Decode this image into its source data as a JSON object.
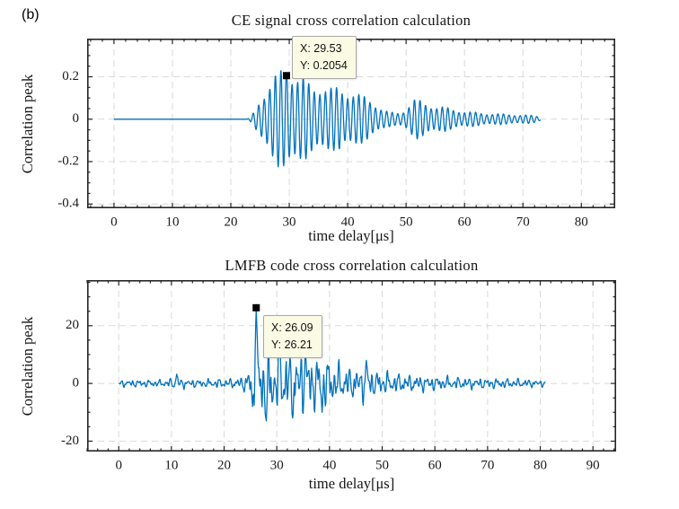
{
  "figure_label": "(b)",
  "style": {
    "line_color": "#0072BD",
    "grid_color": "#d9d9d9",
    "axis_color": "#252525",
    "tick_color": "#252525",
    "marker_color": "#000000",
    "datatip_bg": "#fbfbe5",
    "datatip_border": "#a8a8a8",
    "background": "#ffffff"
  },
  "chart_data": [
    {
      "type": "line",
      "title": "CE signal cross correlation calculation",
      "xlabel": "time delay[μs]",
      "ylabel": "Correlation peak",
      "xlim": [
        -4.6,
        85.8
      ],
      "ylim": [
        -0.42,
        0.38
      ],
      "xticks": [
        0,
        10,
        20,
        30,
        40,
        50,
        60,
        70,
        80
      ],
      "yticks": [
        -0.4,
        -0.2,
        0,
        0.2
      ],
      "x_minor_step": 2,
      "y_minor_step": 0.05,
      "x_major_step": 10,
      "y_major_step": 0.2,
      "grid": "dashed",
      "legend": "none",
      "peak": {
        "x": 29.53,
        "y": 0.2054
      },
      "datatip": {
        "line1": "X: 29.53",
        "line2": "Y: 0.2054"
      },
      "signal": {
        "kind": "am_burst",
        "t_start": 0,
        "t_end": 73,
        "dt": 0.05,
        "carrier_freq": 1.05,
        "carrier_t0": 23.0,
        "carrier_phase": 2.48,
        "am_mod": {
          "freq": 0.21,
          "depth": 0.18,
          "phase": 2.0
        },
        "envelope": [
          [
            0,
            0
          ],
          [
            22.8,
            0
          ],
          [
            23.3,
            0.008
          ],
          [
            24,
            0.03
          ],
          [
            24.8,
            0.07
          ],
          [
            25.6,
            0.11
          ],
          [
            26.5,
            0.15
          ],
          [
            27.5,
            0.18
          ],
          [
            28.5,
            0.198
          ],
          [
            29.53,
            0.2054
          ],
          [
            30.5,
            0.2
          ],
          [
            31.5,
            0.19
          ],
          [
            32.5,
            0.17
          ],
          [
            33.5,
            0.14
          ],
          [
            34.5,
            0.13
          ],
          [
            35.5,
            0.145
          ],
          [
            36.5,
            0.14
          ],
          [
            37.5,
            0.125
          ],
          [
            38.5,
            0.13
          ],
          [
            39.5,
            0.115
          ],
          [
            40.5,
            0.12
          ],
          [
            41.5,
            0.11
          ],
          [
            42.5,
            0.095
          ],
          [
            43.5,
            0.085
          ],
          [
            44.5,
            0.07
          ],
          [
            45.5,
            0.05
          ],
          [
            46.5,
            0.035
          ],
          [
            47.5,
            0.028
          ],
          [
            48.5,
            0.026
          ],
          [
            49.5,
            0.035
          ],
          [
            50.5,
            0.06
          ],
          [
            51.5,
            0.082
          ],
          [
            52.5,
            0.075
          ],
          [
            53.5,
            0.065
          ],
          [
            55,
            0.055
          ],
          [
            56.5,
            0.05
          ],
          [
            58,
            0.042
          ],
          [
            59.5,
            0.035
          ],
          [
            61,
            0.03
          ],
          [
            63,
            0.026
          ],
          [
            65,
            0.023
          ],
          [
            67,
            0.021
          ],
          [
            69,
            0.019
          ],
          [
            71,
            0.017
          ],
          [
            72.5,
            0.012
          ],
          [
            73,
            0.006
          ]
        ],
        "pins": [
          {
            "t": 29.53,
            "y": 0.2054,
            "w": 0.25
          }
        ]
      }
    },
    {
      "type": "line",
      "title": "LMFB code cross correlation calculation",
      "xlabel": "time delay[μs]",
      "ylabel": "Correlation peak",
      "xlim": [
        -6.0,
        94.4
      ],
      "ylim": [
        -23.6,
        35.8
      ],
      "xticks": [
        0,
        10,
        20,
        30,
        40,
        50,
        60,
        70,
        80,
        90
      ],
      "yticks": [
        -20,
        0,
        20
      ],
      "x_minor_step": 2,
      "y_minor_step": 5,
      "x_major_step": 10,
      "y_major_step": 20,
      "grid": "dashed",
      "legend": "none",
      "peak": {
        "x": 26.09,
        "y": 26.21
      },
      "datatip": {
        "line1": "X: 26.09",
        "line2": "Y: 26.21"
      },
      "signal": {
        "kind": "noise",
        "t_start": 0,
        "t_end": 81,
        "dt": 0.1,
        "components": {
          "freqs": [
            0.53,
            0.97,
            1.41,
            2.09,
            2.71
          ],
          "weights": [
            0.5,
            0.55,
            0.45,
            0.3,
            0.18
          ],
          "phases": [
            1.1,
            4.2,
            2.6,
            5.3,
            0.8
          ],
          "norm": 1.5
        },
        "envelope": [
          [
            0,
            1.3
          ],
          [
            4,
            1.4
          ],
          [
            8,
            1.3
          ],
          [
            11,
            2.2
          ],
          [
            13,
            1.6
          ],
          [
            16,
            1.5
          ],
          [
            19,
            1.8
          ],
          [
            22,
            1.8
          ],
          [
            23.5,
            2.5
          ],
          [
            24.5,
            5
          ],
          [
            25.5,
            8
          ],
          [
            26.5,
            12
          ],
          [
            28,
            13
          ],
          [
            30,
            13
          ],
          [
            32,
            12
          ],
          [
            34,
            12
          ],
          [
            36,
            11
          ],
          [
            38,
            10
          ],
          [
            40,
            9
          ],
          [
            41,
            8
          ],
          [
            42,
            7
          ],
          [
            43,
            6.5
          ],
          [
            44,
            6
          ],
          [
            46,
            6
          ],
          [
            47,
            7
          ],
          [
            48,
            5
          ],
          [
            50,
            4.5
          ],
          [
            52,
            4
          ],
          [
            54,
            3.5
          ],
          [
            56,
            3
          ],
          [
            58,
            3
          ],
          [
            60,
            2.6
          ],
          [
            63,
            2.4
          ],
          [
            66,
            2.2
          ],
          [
            70,
            2
          ],
          [
            74,
            1.8
          ],
          [
            78,
            1.5
          ],
          [
            81,
            1.2
          ]
        ],
        "pins": [
          {
            "t": 11.0,
            "y": 3.2,
            "w": 0.3
          },
          {
            "t": 25.4,
            "y": -8,
            "w": 0.3
          },
          {
            "t": 26.09,
            "y": 26.21,
            "w": 0.4
          },
          {
            "t": 28.0,
            "y": -13,
            "w": 0.35
          },
          {
            "t": 30.6,
            "y": 12.5,
            "w": 0.3
          },
          {
            "t": 33.0,
            "y": -12,
            "w": 0.3
          },
          {
            "t": 35.4,
            "y": 11,
            "w": 0.3
          },
          {
            "t": 38.6,
            "y": -10,
            "w": 0.3
          },
          {
            "t": 47.0,
            "y": 8,
            "w": 0.3
          }
        ]
      }
    }
  ]
}
